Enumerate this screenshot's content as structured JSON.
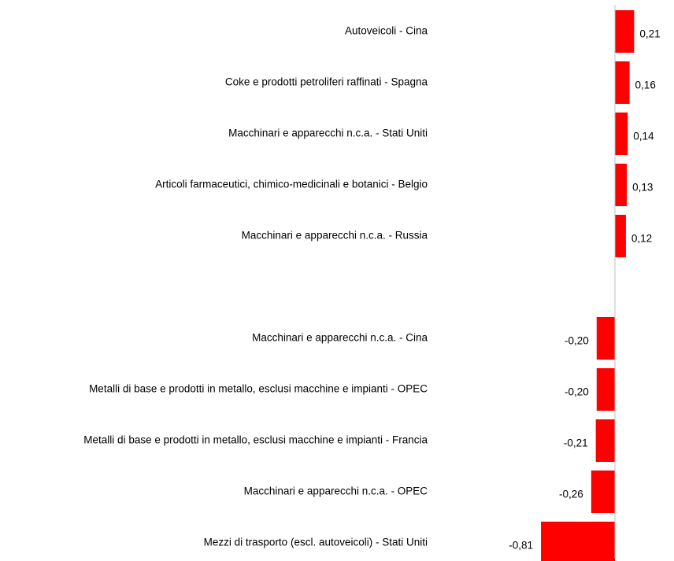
{
  "chart_data": {
    "type": "bar",
    "orientation": "horizontal",
    "color": "#ff0000",
    "categories": [
      "Autoveicoli - Cina",
      "Coke e prodotti petroliferi raffinati - Spagna",
      "Macchinari e apparecchi n.c.a. - Stati Uniti",
      "Articoli farmaceutici, chimico-medicinali e botanici - Belgio",
      "Macchinari e apparecchi n.c.a. - Russia",
      null,
      "Macchinari e apparecchi n.c.a. - Cina",
      "Metalli di base e prodotti in metallo, esclusi macchine e impianti - OPEC",
      "Metalli di base e prodotti in metallo, esclusi macchine e impianti - Francia",
      "Macchinari e apparecchi n.c.a. - OPEC",
      "Mezzi di trasporto (escl. autoveicoli) - Stati Uniti"
    ],
    "values": [
      0.21,
      0.16,
      0.14,
      0.13,
      0.12,
      null,
      -0.2,
      -0.2,
      -0.21,
      -0.26,
      -0.81
    ],
    "value_labels": [
      "0,21",
      "0,16",
      "0,14",
      "0,13",
      "0,12",
      null,
      "-0,20",
      "-0,20",
      "-0,21",
      "-0,26",
      "-0,81"
    ]
  }
}
